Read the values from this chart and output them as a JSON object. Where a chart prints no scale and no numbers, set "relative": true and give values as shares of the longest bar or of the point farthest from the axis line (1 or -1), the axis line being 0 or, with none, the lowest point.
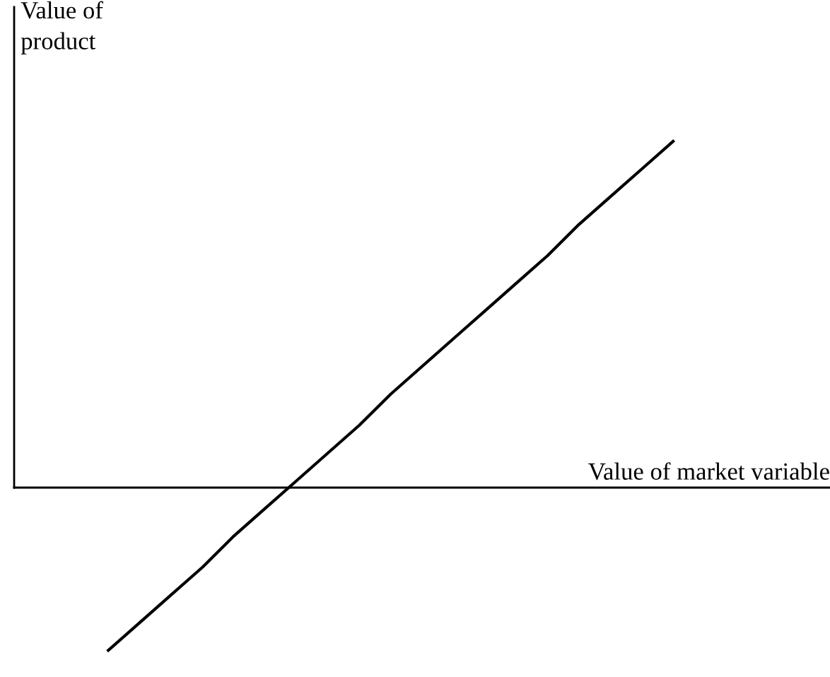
{
  "chart_data": {
    "type": "line",
    "relative": true,
    "xlabel": "Value of market variable",
    "ylabel": "Value of\nproduct",
    "categories": [
      null,
      null,
      null,
      null,
      null,
      null,
      null,
      null,
      null,
      null,
      null,
      null,
      null,
      null,
      null,
      null,
      null,
      null,
      null,
      null,
      null,
      null,
      null,
      null,
      null,
      null,
      null
    ],
    "series": [
      {
        "color": "#000000",
        "values": [
          null,
          null,
          null,
          -0.47,
          -0.39,
          -0.31,
          -0.23,
          -0.14,
          -0.06,
          0.02,
          0.1,
          0.18,
          0.27,
          0.35,
          0.43,
          0.51,
          0.59,
          0.67,
          0.76,
          0.84,
          0.92,
          1,
          null,
          null,
          null,
          null,
          null
        ]
      }
    ],
    "marker": "none",
    "line_style": "solid"
  }
}
